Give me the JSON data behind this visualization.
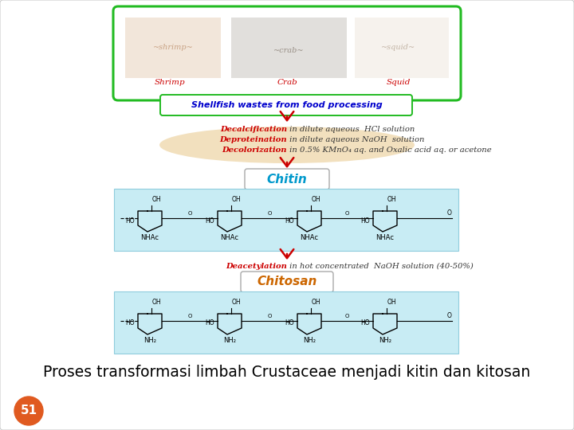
{
  "bg_color": "#ffffff",
  "title_text": "Proses transformasi limbah Crustaceae menjadi kitin dan kitosan",
  "title_color": "#000000",
  "title_fontsize": 13.5,
  "page_number": "51",
  "page_number_bg": "#e05a20",
  "page_number_color": "#ffffff",
  "page_number_fontsize": 11,
  "shellfish_box_color": "#22bb22",
  "shellfish_label_color": "#cc0000",
  "shellfish_title_text": "Shellfish wastes from food processing",
  "shellfish_title_color": "#0000cc",
  "shellfish_title_border": "#22bb22",
  "animals": [
    "Shrimp",
    "Crab",
    "Squid"
  ],
  "step1_bold": "Decalcification",
  "step1_rest": " in dilute aqueous  HCl solution",
  "step2_bold": "Deproteination",
  "step2_rest": " in dilute aqueous NaOH  solution",
  "step3_bold": "Decolorization",
  "step3_rest": " in 0.5% KMnO₄ aq. and Oxalic acid aq. or acetone",
  "step_color_red": "#cc0000",
  "step_color_black": "#333333",
  "chitin_label": "Chitin",
  "chitin_label_color": "#0099cc",
  "chitin_box_bg": "#c8ecf4",
  "chitin_box_border": "#90ccdd",
  "chitosan_label": "Chitosan",
  "chitosan_label_color": "#cc6600",
  "chitosan_box_bg": "#c8ecf4",
  "chitosan_box_border": "#90ccdd",
  "deacet_bold": "Deacetylation",
  "deacet_rest": " in hot concentrated  NaOH solution (40-50%)",
  "arrow_color": "#cc0000",
  "swash_color": "#e8c88a",
  "nhac_label": "NHAc",
  "nh2_label": "NH₂"
}
